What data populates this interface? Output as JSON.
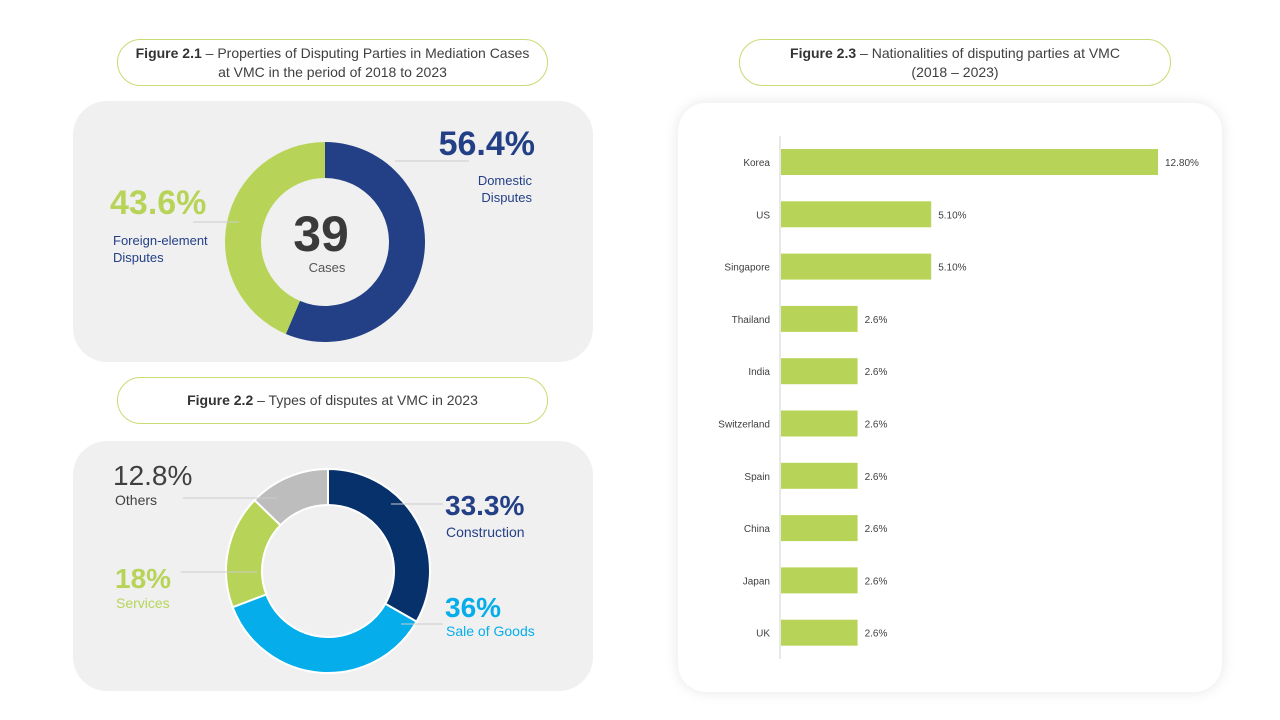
{
  "figure_1": {
    "caption_bold": "Figure 2.1",
    "caption_line1": " – Properties of Disputing Parties in Mediation Cases",
    "caption_line2": "at VMC in the period of 2018 to 2023",
    "center_value": "39",
    "center_label": "Cases",
    "domestic_pct": "56.4%",
    "domestic_label_1": "Domestic",
    "domestic_label_2": "Disputes",
    "foreign_pct": "43.6%",
    "foreign_label_1": "Foreign-element",
    "foreign_label_2": "Disputes"
  },
  "figure_2": {
    "caption_bold": "Figure 2.2",
    "caption_rest": " – Types of disputes at VMC in 2023",
    "others_pct": "12.8%",
    "others_label": "Others",
    "services_pct": "18%",
    "services_label": "Services",
    "construction_pct": "33.3%",
    "construction_label": "Construction",
    "sale_pct": "36%",
    "sale_label": "Sale of Goods"
  },
  "figure_3": {
    "caption_bold": "Figure 2.3",
    "caption_line1": " – Nationalities of disputing parties at VMC",
    "caption_line2": "(2018 – 2023)"
  },
  "colors": {
    "navy": "#233f86",
    "dark_navy": "#06316b",
    "lime": "#b8d458",
    "sky": "#05aeea",
    "grey": "#bdbdbd",
    "dark_text": "#333333"
  },
  "chart_data": [
    {
      "type": "pie",
      "title": "Properties of Disputing Parties in Mediation Cases at VMC in the period of 2018 to 2023",
      "categories": [
        "Domestic Disputes",
        "Foreign-element Disputes"
      ],
      "values": [
        56.4,
        43.6
      ],
      "center_text": "39 Cases"
    },
    {
      "type": "pie",
      "title": "Types of disputes at VMC in 2023",
      "categories": [
        "Construction",
        "Sale of Goods",
        "Services",
        "Others"
      ],
      "values": [
        33.3,
        36,
        18,
        12.8
      ]
    },
    {
      "type": "bar",
      "orientation": "horizontal",
      "title": "Nationalities of disputing parties at VMC (2018 – 2023)",
      "categories": [
        "Korea",
        "US",
        "Singapore",
        "Thailand",
        "India",
        "Switzerland",
        "Spain",
        "China",
        "Japan",
        "UK"
      ],
      "values": [
        12.8,
        5.1,
        5.1,
        2.6,
        2.6,
        2.6,
        2.6,
        2.6,
        2.6,
        2.6
      ],
      "value_labels": [
        "12.80%",
        "5.10%",
        "5.10%",
        "2.6%",
        "2.6%",
        "2.6%",
        "2.6%",
        "2.6%",
        "2.6%",
        "2.6%"
      ],
      "xlim": [
        0,
        12.8
      ],
      "grid": false,
      "legend": "none"
    }
  ]
}
